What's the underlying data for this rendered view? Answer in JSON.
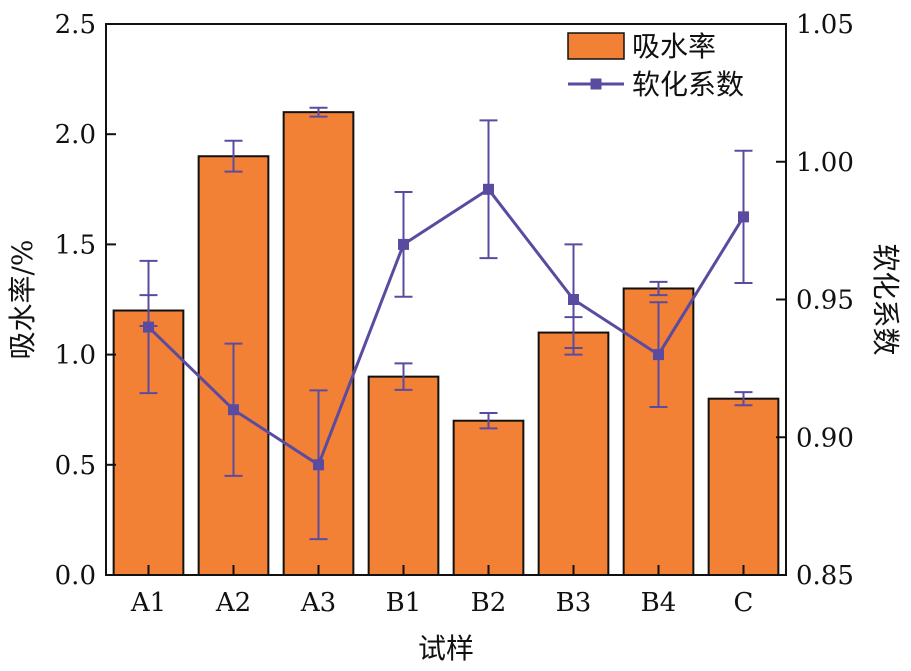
{
  "chart_data": {
    "type": "bar+line",
    "categories": [
      "A1",
      "A2",
      "A3",
      "B1",
      "B2",
      "B3",
      "B4",
      "C"
    ],
    "xlabel": "试样",
    "series": [
      {
        "name": "吸水率",
        "type": "bar",
        "axis": "left",
        "color": "#F28035",
        "values": [
          1.2,
          1.9,
          2.1,
          0.9,
          0.7,
          1.1,
          1.3,
          0.8
        ],
        "errors": [
          0.07,
          0.07,
          0.02,
          0.06,
          0.035,
          0.07,
          0.03,
          0.03
        ]
      },
      {
        "name": "软化系数",
        "type": "line",
        "axis": "right",
        "color": "#5B4BA0",
        "marker": "square",
        "values": [
          0.94,
          0.91,
          0.89,
          0.97,
          0.99,
          0.95,
          0.93,
          0.98
        ],
        "errors": [
          0.024,
          0.024,
          0.027,
          0.019,
          0.025,
          0.02,
          0.019,
          0.024
        ]
      }
    ],
    "y_left": {
      "label": "吸水率/%",
      "lim": [
        0,
        2.5
      ],
      "ticks": [
        "0.0",
        "0.5",
        "1.0",
        "1.5",
        "2.0",
        "2.5"
      ]
    },
    "y_right": {
      "label": "软化系数",
      "lim": [
        0.85,
        1.05
      ],
      "ticks": [
        "0.85",
        "0.90",
        "0.95",
        "1.00",
        "1.05"
      ]
    },
    "legend": "top-right",
    "grid": false
  }
}
